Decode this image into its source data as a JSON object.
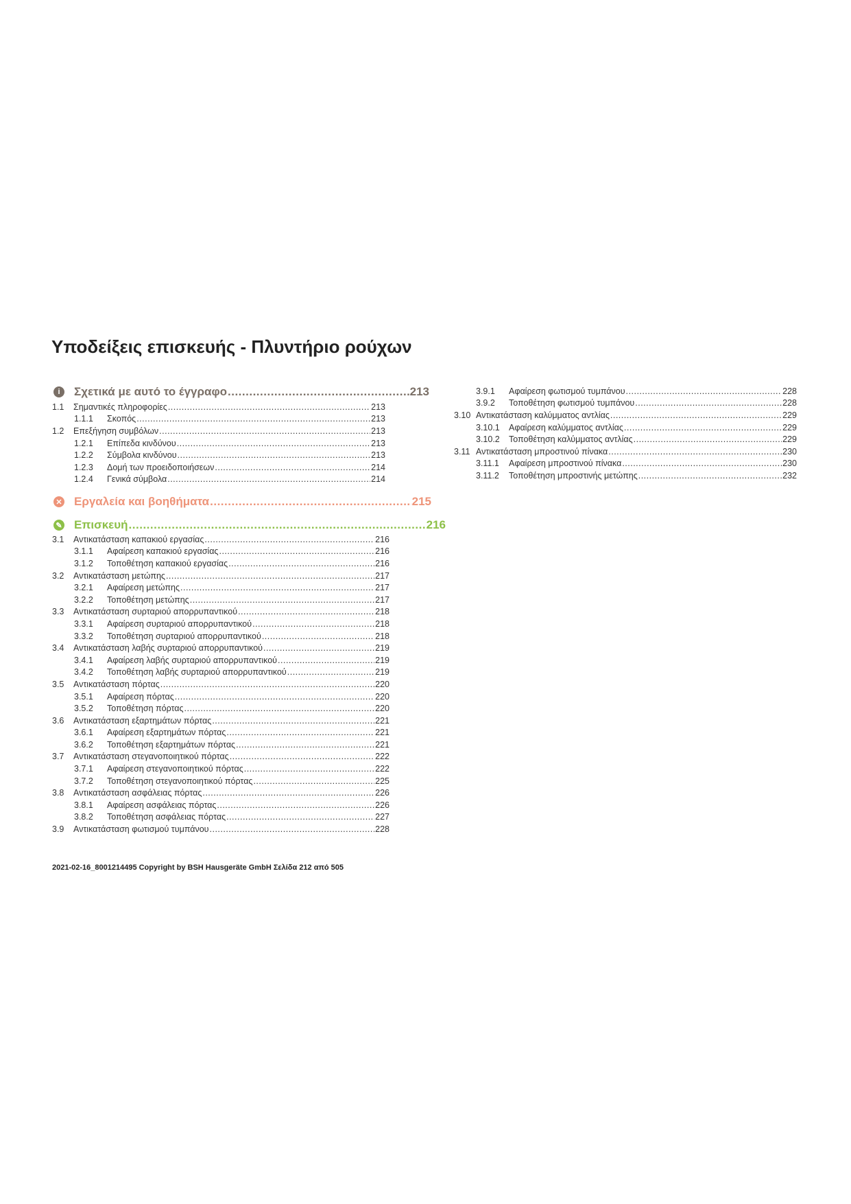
{
  "title": "Υποδείξεις επισκευής - Πλυντήριο ρούχων",
  "sections": [
    {
      "icon": "info-icon",
      "glyph": "i",
      "color": "#7a6f66",
      "label": "Σχετικά με αυτό το έγγραφο",
      "page": "213"
    },
    {
      "icon": "tools-icon",
      "glyph": "✕",
      "color": "#ee9479",
      "label": "Εργαλεία και βοηθήματα",
      "page": "215"
    },
    {
      "icon": "wrench-icon",
      "glyph": "✎",
      "color": "#8dc048",
      "label": "Επισκευή",
      "page": "216"
    }
  ],
  "toc_section1": [
    {
      "num": "1.1",
      "label": "Σημαντικές πληροφορίες",
      "page": "213",
      "level": 1
    },
    {
      "num": "1.1.1",
      "label": "Σκοπός",
      "page": "213",
      "level": 2
    },
    {
      "num": "1.2",
      "label": "Επεξήγηση συμβόλων",
      "page": "213",
      "level": 1
    },
    {
      "num": "1.2.1",
      "label": "Επίπεδα κινδύνου",
      "page": "213",
      "level": 2
    },
    {
      "num": "1.2.2",
      "label": "Σύμβολα κινδύνου",
      "page": "213",
      "level": 2
    },
    {
      "num": "1.2.3",
      "label": "Δομή των προειδοποιήσεων",
      "page": "214",
      "level": 2
    },
    {
      "num": "1.2.4",
      "label": "Γενικά σύμβολα",
      "page": "214",
      "level": 2
    }
  ],
  "toc_section3_left": [
    {
      "num": "3.1",
      "label": "Αντικατάσταση καπακιού εργασίας",
      "page": "216",
      "level": 1
    },
    {
      "num": "3.1.1",
      "label": "Αφαίρεση καπακιού εργασίας",
      "page": "216",
      "level": 2
    },
    {
      "num": "3.1.2",
      "label": "Τοποθέτηση καπακιού εργασίας",
      "page": "216",
      "level": 2
    },
    {
      "num": "3.2",
      "label": "Αντικατάσταση μετώπης",
      "page": "217",
      "level": 1
    },
    {
      "num": "3.2.1",
      "label": "Αφαίρεση μετώπης",
      "page": "217",
      "level": 2
    },
    {
      "num": "3.2.2",
      "label": "Τοποθέτηση μετώπης",
      "page": "217",
      "level": 2
    },
    {
      "num": "3.3",
      "label": "Αντικατάσταση συρταριού απορρυπαντικού",
      "page": "218",
      "level": 1
    },
    {
      "num": "3.3.1",
      "label": "Αφαίρεση συρταριού απορρυπαντικού",
      "page": "218",
      "level": 2
    },
    {
      "num": "3.3.2",
      "label": "Τοποθέτηση συρταριού απορρυπαντικού",
      "page": "218",
      "level": 2
    },
    {
      "num": "3.4",
      "label": "Αντικατάσταση λαβής συρταριού απορρυπαντικού",
      "page": "219",
      "level": 1
    },
    {
      "num": "3.4.1",
      "label": "Αφαίρεση λαβής συρταριού απορρυπαντικού",
      "page": "219",
      "level": 2
    },
    {
      "num": "3.4.2",
      "label": "Τοποθέτηση λαβής συρταριού απορρυπαντικού",
      "page": "219",
      "level": 2
    },
    {
      "num": "3.5",
      "label": "Αντικατάσταση πόρτας",
      "page": "220",
      "level": 1
    },
    {
      "num": "3.5.1",
      "label": "Αφαίρεση πόρτας",
      "page": "220",
      "level": 2
    },
    {
      "num": "3.5.2",
      "label": "Τοποθέτηση πόρτας",
      "page": "220",
      "level": 2
    },
    {
      "num": "3.6",
      "label": "Αντικατάσταση εξαρτημάτων πόρτας",
      "page": "221",
      "level": 1
    },
    {
      "num": "3.6.1",
      "label": "Αφαίρεση εξαρτημάτων πόρτας",
      "page": "221",
      "level": 2
    },
    {
      "num": "3.6.2",
      "label": "Τοποθέτηση εξαρτημάτων πόρτας",
      "page": "221",
      "level": 2
    },
    {
      "num": "3.7",
      "label": "Αντικατάσταση στεγανοποιητικού πόρτας",
      "page": "222",
      "level": 1
    },
    {
      "num": "3.7.1",
      "label": "Αφαίρεση στεγανοποιητικού πόρτας",
      "page": "222",
      "level": 2
    },
    {
      "num": "3.7.2",
      "label": "Τοποθέτηση στεγανοποιητικού πόρτας",
      "page": "225",
      "level": 2
    },
    {
      "num": "3.8",
      "label": "Αντικατάσταση ασφάλειας πόρτας",
      "page": "226",
      "level": 1
    },
    {
      "num": "3.8.1",
      "label": "Αφαίρεση ασφάλειας πόρτας",
      "page": "226",
      "level": 2
    },
    {
      "num": "3.8.2",
      "label": "Τοποθέτηση ασφάλειας πόρτας",
      "page": "227",
      "level": 2
    },
    {
      "num": "3.9",
      "label": "Αντικατάσταση φωτισμού τυμπάνου",
      "page": "228",
      "level": 1
    }
  ],
  "toc_section3_right": [
    {
      "num": "3.9.1",
      "label": "Αφαίρεση φωτισμού τυμπάνου",
      "page": "228",
      "level": 2
    },
    {
      "num": "3.9.2",
      "label": "Τοποθέτηση φωτισμού τυμπάνου",
      "page": "228",
      "level": 2
    },
    {
      "num": "3.10",
      "label": "Αντικατάσταση καλύμματος αντλίας",
      "page": "229",
      "level": 1
    },
    {
      "num": "3.10.1",
      "label": "Αφαίρεση καλύμματος αντλίας",
      "page": "229",
      "level": 2
    },
    {
      "num": "3.10.2",
      "label": "Τοποθέτηση καλύμματος αντλίας",
      "page": "229",
      "level": 2
    },
    {
      "num": "3.11",
      "label": "Αντικατάσταση μπροστινού πίνακα",
      "page": "230",
      "level": 1
    },
    {
      "num": "3.11.1",
      "label": "Αφαίρεση μπροστινού πίνακα",
      "page": "230",
      "level": 2
    },
    {
      "num": "3.11.2",
      "label": "Τοποθέτηση μπροστινής μετώπης",
      "page": "232",
      "level": 2
    }
  ],
  "footer": "2021-02-16_8001214495 Copyright by BSH Hausgeräte GmbH Σελίδα 212 από 505"
}
